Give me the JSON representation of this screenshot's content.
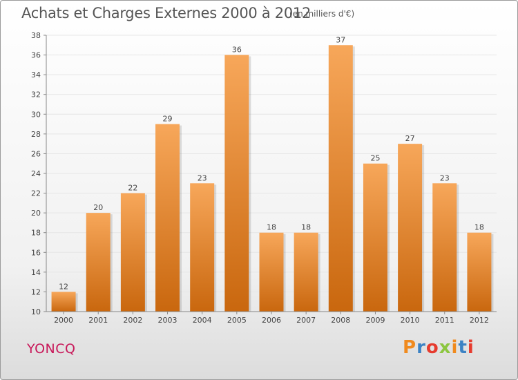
{
  "header": {
    "title": "Achats et Charges Externes 2000 à 2012",
    "unit": "(en milliers d'€)"
  },
  "footer": {
    "town": "YONCQ",
    "logo_text": "Proxiti",
    "logo_colors": [
      "#f08a1e",
      "#3b82c4",
      "#e63b2e",
      "#8cc63f",
      "#f08a1e",
      "#3b82c4",
      "#e63b2e"
    ]
  },
  "colors": {
    "bar_top": "#f7a75a",
    "bar_bottom": "#c9670e",
    "grid": "#e6e6e6",
    "axis": "#888888",
    "town": "#c8195a"
  },
  "chart_data": {
    "type": "bar",
    "title": "Achats et Charges Externes 2000 à 2012",
    "subtitle": "(en milliers d'€)",
    "xlabel": "",
    "ylabel": "",
    "categories": [
      "2000",
      "2001",
      "2002",
      "2003",
      "2004",
      "2005",
      "2006",
      "2007",
      "2008",
      "2009",
      "2010",
      "2011",
      "2012"
    ],
    "values": [
      12,
      20,
      22,
      29,
      23,
      36,
      18,
      18,
      37,
      25,
      27,
      23,
      18
    ],
    "ylim": [
      10,
      38
    ],
    "yticks": [
      10,
      12,
      14,
      16,
      18,
      20,
      22,
      24,
      26,
      28,
      30,
      32,
      34,
      36,
      38
    ],
    "grid": true,
    "data_labels": true
  }
}
